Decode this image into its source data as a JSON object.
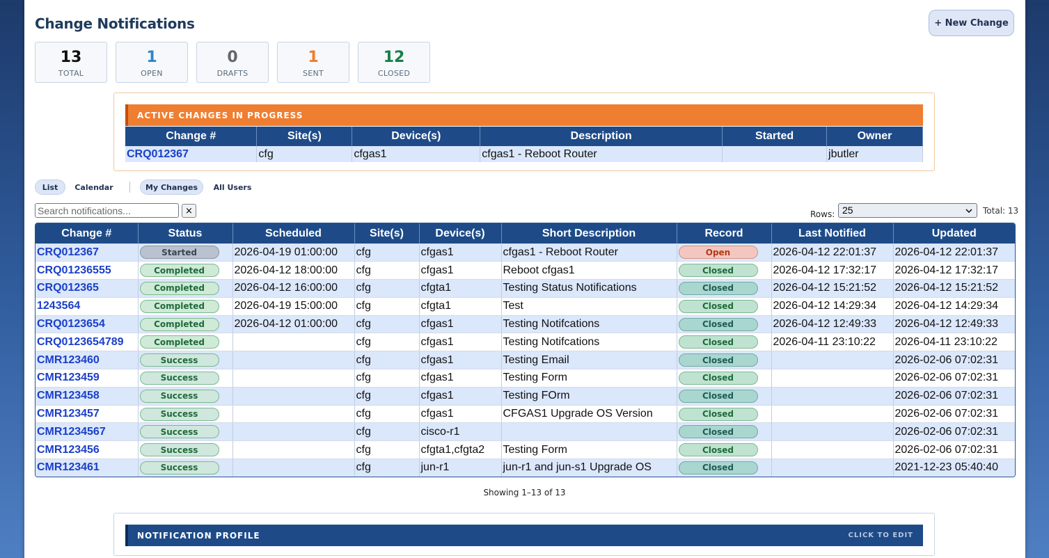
{
  "page_title": "Change Notifications",
  "new_button": "+ New Change",
  "stats": [
    {
      "value": "13",
      "label": "TOTAL",
      "color": "#111111"
    },
    {
      "value": "1",
      "label": "OPEN",
      "color": "#2e86c9"
    },
    {
      "value": "0",
      "label": "DRAFTS",
      "color": "#666666"
    },
    {
      "value": "1",
      "label": "SENT",
      "color": "#ee7d2e"
    },
    {
      "value": "12",
      "label": "CLOSED",
      "color": "#16804a"
    }
  ],
  "active": {
    "title": "ACTIVE CHANGES IN PROGRESS",
    "columns": [
      "Change #",
      "Site(s)",
      "Device(s)",
      "Description",
      "Started",
      "Owner"
    ],
    "rows": [
      {
        "change": "CRQ012367",
        "site": "cfg",
        "device": "cfgas1",
        "description": "cfgas1 - Reboot Router",
        "started": "",
        "owner": "jbutler"
      }
    ]
  },
  "views": {
    "list": "List",
    "calendar": "Calendar",
    "my_changes": "My Changes",
    "all_users": "All Users"
  },
  "search": {
    "placeholder": "Search notifications...",
    "clear": "×"
  },
  "rows_label": "Rows:",
  "rows_value": "25",
  "total_label": "Total: 13",
  "main": {
    "columns": [
      "Change #",
      "Status",
      "Scheduled",
      "Site(s)",
      "Device(s)",
      "Short Description",
      "Record",
      "Last Notified",
      "Updated"
    ],
    "rows": [
      {
        "change": "CRQ012367",
        "status": "Started",
        "status_kind": "started",
        "scheduled": "2026-04-19 01:00:00",
        "site": "cfg",
        "device": "cfgas1",
        "desc": "cfgas1 - Reboot Router",
        "record": "Open",
        "record_kind": "open",
        "notified": "2026-04-12 22:01:37",
        "updated": "2026-04-12 22:01:37"
      },
      {
        "change": "CRQ01236555",
        "status": "Completed",
        "status_kind": "completed",
        "scheduled": "2026-04-12 18:00:00",
        "site": "cfg",
        "device": "cfgas1",
        "desc": "Reboot cfgas1",
        "record": "Closed",
        "record_kind": "closed-b",
        "notified": "2026-04-12 17:32:17",
        "updated": "2026-04-12 17:32:17"
      },
      {
        "change": "CRQ012365",
        "status": "Completed",
        "status_kind": "completed",
        "scheduled": "2026-04-12 16:00:00",
        "site": "cfg",
        "device": "cfgta1",
        "desc": "Testing Status Notifications",
        "record": "Closed",
        "record_kind": "closed-a",
        "notified": "2026-04-12 15:21:52",
        "updated": "2026-04-12 15:21:52"
      },
      {
        "change": "1243564",
        "status": "Completed",
        "status_kind": "completed",
        "scheduled": "2026-04-19 15:00:00",
        "site": "cfg",
        "device": "cfgta1",
        "desc": "Test",
        "record": "Closed",
        "record_kind": "closed-b",
        "notified": "2026-04-12 14:29:34",
        "updated": "2026-04-12 14:29:34"
      },
      {
        "change": "CRQ0123654",
        "status": "Completed",
        "status_kind": "completed",
        "scheduled": "2026-04-12 01:00:00",
        "site": "cfg",
        "device": "cfgas1",
        "desc": "Testing Notifcations",
        "record": "Closed",
        "record_kind": "closed-a",
        "notified": "2026-04-12 12:49:33",
        "updated": "2026-04-12 12:49:33"
      },
      {
        "change": "CRQ0123654789",
        "status": "Completed",
        "status_kind": "completed",
        "scheduled": "",
        "site": "cfg",
        "device": "cfgas1",
        "desc": "Testing Notifcations",
        "record": "Closed",
        "record_kind": "closed-b",
        "notified": "2026-04-11 23:10:22",
        "updated": "2026-04-11 23:10:22"
      },
      {
        "change": "CMR123460",
        "status": "Success",
        "status_kind": "success",
        "scheduled": "",
        "site": "cfg",
        "device": "cfgas1",
        "desc": "Testing Email",
        "record": "Closed",
        "record_kind": "closed-a",
        "notified": "",
        "updated": "2026-02-06 07:02:31"
      },
      {
        "change": "CMR123459",
        "status": "Success",
        "status_kind": "success",
        "scheduled": "",
        "site": "cfg",
        "device": "cfgas1",
        "desc": "Testing Form",
        "record": "Closed",
        "record_kind": "closed-b",
        "notified": "",
        "updated": "2026-02-06 07:02:31"
      },
      {
        "change": "CMR123458",
        "status": "Success",
        "status_kind": "success",
        "scheduled": "",
        "site": "cfg",
        "device": "cfgas1",
        "desc": "Testing FOrm",
        "record": "Closed",
        "record_kind": "closed-a",
        "notified": "",
        "updated": "2026-02-06 07:02:31"
      },
      {
        "change": "CMR123457",
        "status": "Success",
        "status_kind": "success",
        "scheduled": "",
        "site": "cfg",
        "device": "cfgas1",
        "desc": "CFGAS1 Upgrade OS Version",
        "record": "Closed",
        "record_kind": "closed-b",
        "notified": "",
        "updated": "2026-02-06 07:02:31"
      },
      {
        "change": "CMR1234567",
        "status": "Success",
        "status_kind": "success",
        "scheduled": "",
        "site": "cfg",
        "device": "cisco-r1",
        "desc": "",
        "record": "Closed",
        "record_kind": "closed-a",
        "notified": "",
        "updated": "2026-02-06 07:02:31"
      },
      {
        "change": "CMR123456",
        "status": "Success",
        "status_kind": "success",
        "scheduled": "",
        "site": "cfg",
        "device": "cfgta1,cfgta2",
        "desc": "Testing Form",
        "record": "Closed",
        "record_kind": "closed-b",
        "notified": "",
        "updated": "2026-02-06 07:02:31"
      },
      {
        "change": "CMR123461",
        "status": "Success",
        "status_kind": "success",
        "scheduled": "",
        "site": "cfg",
        "device": "jun-r1",
        "desc": "jun-r1 and jun-s1 Upgrade OS",
        "record": "Closed",
        "record_kind": "closed-a",
        "notified": "",
        "updated": "2021-12-23 05:40:40"
      }
    ]
  },
  "showing": "Showing 1–13 of 13",
  "profile": {
    "title": "NOTIFICATION PROFILE",
    "edit": "CLICK TO EDIT"
  }
}
